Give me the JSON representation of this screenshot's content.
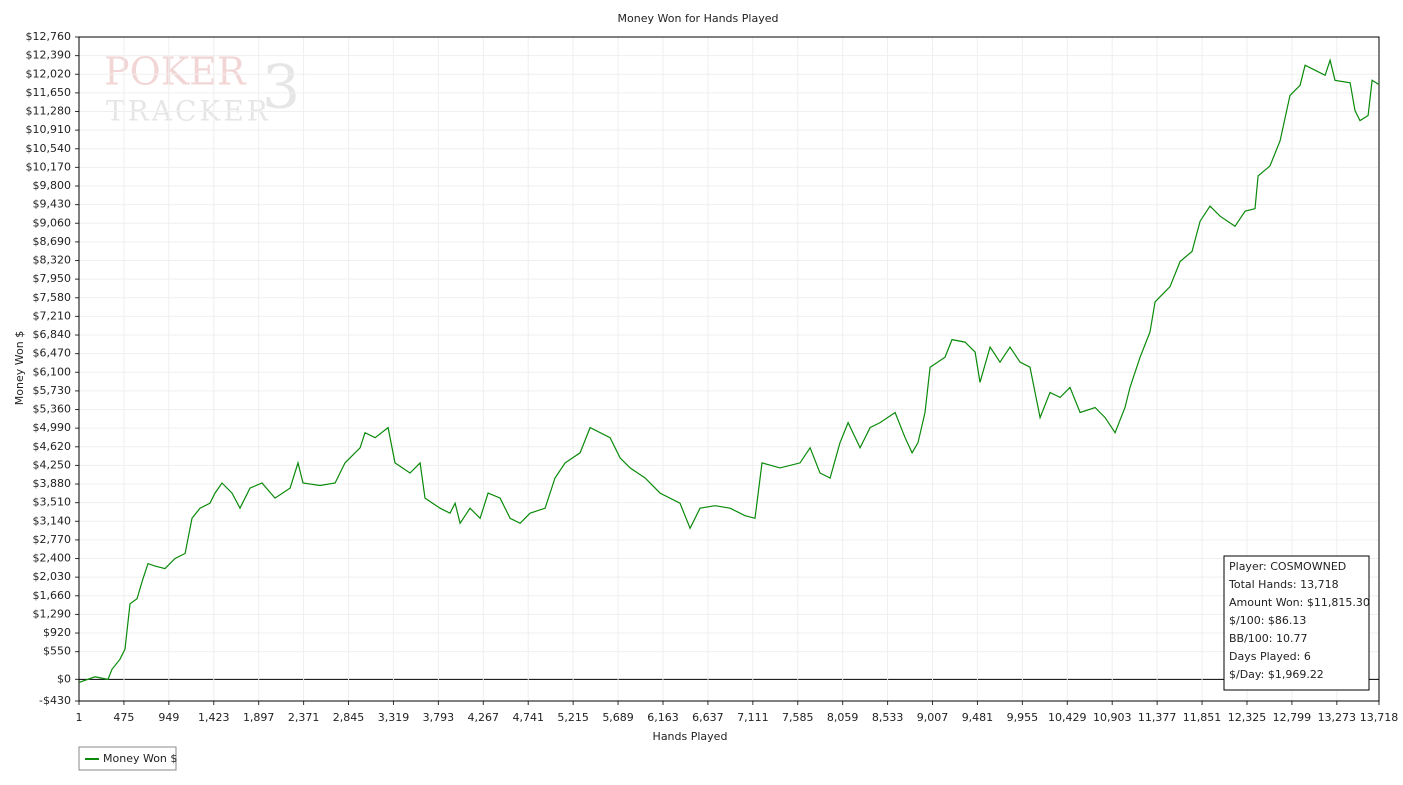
{
  "chart_data": {
    "type": "line",
    "title": "Money Won for Hands Played",
    "xlabel": "Hands Played",
    "ylabel": "Money Won $",
    "watermark": [
      "POKER",
      "TRACKER",
      "3"
    ],
    "grid": true,
    "legend": "bottom-left",
    "xlim": [
      1,
      13718
    ],
    "ylim": [
      -430,
      12760
    ],
    "xticks": [
      1,
      {
        "value": 475,
        "label": "475"
      },
      {
        "value": 949,
        "label": "949"
      },
      {
        "value": 1423,
        "label": "1,423"
      },
      {
        "value": 1897,
        "label": "1,897"
      },
      {
        "value": 2371,
        "label": "2,371"
      },
      {
        "value": 2845,
        "label": "2,845"
      },
      {
        "value": 3319,
        "label": "3,319"
      },
      {
        "value": 3793,
        "label": "3,793"
      },
      {
        "value": 4267,
        "label": "4,267"
      },
      {
        "value": 4741,
        "label": "4,741"
      },
      {
        "value": 5215,
        "label": "5,215"
      },
      {
        "value": 5689,
        "label": "5,689"
      },
      {
        "value": 6163,
        "label": "6,163"
      },
      {
        "value": 6637,
        "label": "6,637"
      },
      {
        "value": 7111,
        "label": "7,111"
      },
      {
        "value": 7585,
        "label": "7,585"
      },
      {
        "value": 8059,
        "label": "8,059"
      },
      {
        "value": 8533,
        "label": "8,533"
      },
      {
        "value": 9007,
        "label": "9,007"
      },
      {
        "value": 9481,
        "label": "9,481"
      },
      {
        "value": 9955,
        "label": "9,955"
      },
      {
        "value": 10429,
        "label": "10,429"
      },
      {
        "value": 10903,
        "label": "10,903"
      },
      {
        "value": 11377,
        "label": "11,377"
      },
      {
        "value": 11851,
        "label": "11,851"
      },
      {
        "value": 12325,
        "label": "12,325"
      },
      {
        "value": 12799,
        "label": "12,799"
      },
      {
        "value": 13273,
        "label": "13,273"
      },
      {
        "value": 13718,
        "label": "13,718"
      }
    ],
    "yticks": [
      {
        "value": -430,
        "label": "-$430"
      },
      {
        "value": 0,
        "label": "$0"
      },
      {
        "value": 550,
        "label": "$550"
      },
      {
        "value": 920,
        "label": "$920"
      },
      {
        "value": 1290,
        "label": "$1,290"
      },
      {
        "value": 1660,
        "label": "$1,660"
      },
      {
        "value": 2030,
        "label": "$2,030"
      },
      {
        "value": 2400,
        "label": "$2,400"
      },
      {
        "value": 2770,
        "label": "$2,770"
      },
      {
        "value": 3140,
        "label": "$3,140"
      },
      {
        "value": 3510,
        "label": "$3,510"
      },
      {
        "value": 3880,
        "label": "$3,880"
      },
      {
        "value": 4250,
        "label": "$4,250"
      },
      {
        "value": 4620,
        "label": "$4,620"
      },
      {
        "value": 4990,
        "label": "$4,990"
      },
      {
        "value": 5360,
        "label": "$5,360"
      },
      {
        "value": 5730,
        "label": "$5,730"
      },
      {
        "value": 6100,
        "label": "$6,100"
      },
      {
        "value": 6470,
        "label": "$6,470"
      },
      {
        "value": 6840,
        "label": "$6,840"
      },
      {
        "value": 7210,
        "label": "$7,210"
      },
      {
        "value": 7580,
        "label": "$7,580"
      },
      {
        "value": 7950,
        "label": "$7,950"
      },
      {
        "value": 8320,
        "label": "$8,320"
      },
      {
        "value": 8690,
        "label": "$8,690"
      },
      {
        "value": 9060,
        "label": "$9,060"
      },
      {
        "value": 9430,
        "label": "$9,430"
      },
      {
        "value": 9800,
        "label": "$9,800"
      },
      {
        "value": 10170,
        "label": "$10,170"
      },
      {
        "value": 10540,
        "label": "$10,540"
      },
      {
        "value": 10910,
        "label": "$10,910"
      },
      {
        "value": 11280,
        "label": "$11,280"
      },
      {
        "value": 11650,
        "label": "$11,650"
      },
      {
        "value": 12020,
        "label": "$12,020"
      },
      {
        "value": 12390,
        "label": "$12,390"
      },
      {
        "value": 12760,
        "label": "$12,760"
      }
    ],
    "x": [
      1,
      170,
      307,
      349,
      434,
      486,
      539,
      613,
      676,
      729,
      803,
      908,
      1014,
      1120,
      1193,
      1278,
      1383,
      1436,
      1510,
      1615,
      1700,
      1805,
      1932,
      2069,
      2228,
      2312,
      2365,
      2544,
      2703,
      2808,
      2967,
      3019,
      3125,
      3262,
      3335,
      3494,
      3600,
      3652,
      3811,
      3916,
      3969,
      4022,
      4127,
      4233,
      4318,
      4444,
      4550,
      4655,
      4761,
      4919,
      5024,
      5130,
      5288,
      5394,
      5605,
      5710,
      5816,
      5974,
      6132,
      6343,
      6449,
      6554,
      6713,
      6871,
      7029,
      7134,
      7208,
      7398,
      7609,
      7715,
      7820,
      7926,
      8031,
      8116,
      8243,
      8348,
      8454,
      8612,
      8718,
      8791,
      8854,
      8928,
      8981,
      9139,
      9213,
      9350,
      9456,
      9508,
      9614,
      9719,
      9825,
      9931,
      10036,
      10142,
      10247,
      10353,
      10458,
      10564,
      10722,
      10828,
      10933,
      11038,
      11091,
      11197,
      11302,
      11355,
      11513,
      11619,
      11745,
      11830,
      11935,
      12041,
      12199,
      12305,
      12410,
      12442,
      12568,
      12674,
      12779,
      12885,
      12938,
      13043,
      13149,
      13202,
      13254,
      13413,
      13465,
      13518,
      13603,
      13645,
      13718
    ],
    "series": [
      {
        "name": "Money Won $",
        "color": "#0a8a0a",
        "values": [
          -60,
          50,
          0,
          200,
          400,
          600,
          1500,
          1600,
          2000,
          2300,
          2250,
          2200,
          2400,
          2500,
          3200,
          3400,
          3500,
          3700,
          3900,
          3700,
          3400,
          3800,
          3900,
          3600,
          3800,
          4300,
          3900,
          3850,
          3900,
          4300,
          4600,
          4900,
          4800,
          5000,
          4300,
          4100,
          4300,
          3600,
          3400,
          3300,
          3500,
          3100,
          3400,
          3200,
          3700,
          3600,
          3200,
          3100,
          3300,
          3400,
          4000,
          4300,
          4500,
          5000,
          4800,
          4400,
          4200,
          4000,
          3700,
          3500,
          3000,
          3400,
          3450,
          3400,
          3250,
          3200,
          4300,
          4200,
          4300,
          4600,
          4100,
          4000,
          4700,
          5100,
          4600,
          5000,
          5100,
          5300,
          4800,
          4500,
          4700,
          5300,
          6200,
          6400,
          6750,
          6700,
          6500,
          5900,
          6600,
          6300,
          6600,
          6300,
          6200,
          5200,
          5700,
          5600,
          5800,
          5300,
          5400,
          5200,
          4900,
          5400,
          5800,
          6400,
          6900,
          7500,
          7800,
          8300,
          8500,
          9100,
          9400,
          9200,
          9000,
          9300,
          9350,
          10000,
          10200,
          10700,
          11600,
          11800,
          12200,
          12100,
          12000,
          12300,
          11900,
          11850,
          11300,
          11100,
          11200,
          11900,
          11815
        ]
      }
    ],
    "stats": [
      "Player: COSMOWNED",
      "Total Hands: 13,718",
      "Amount Won: $11,815.30",
      "$/100: $86.13",
      "BB/100: 10.77",
      "Days Played: 6",
      "$/Day: $1,969.22"
    ]
  }
}
